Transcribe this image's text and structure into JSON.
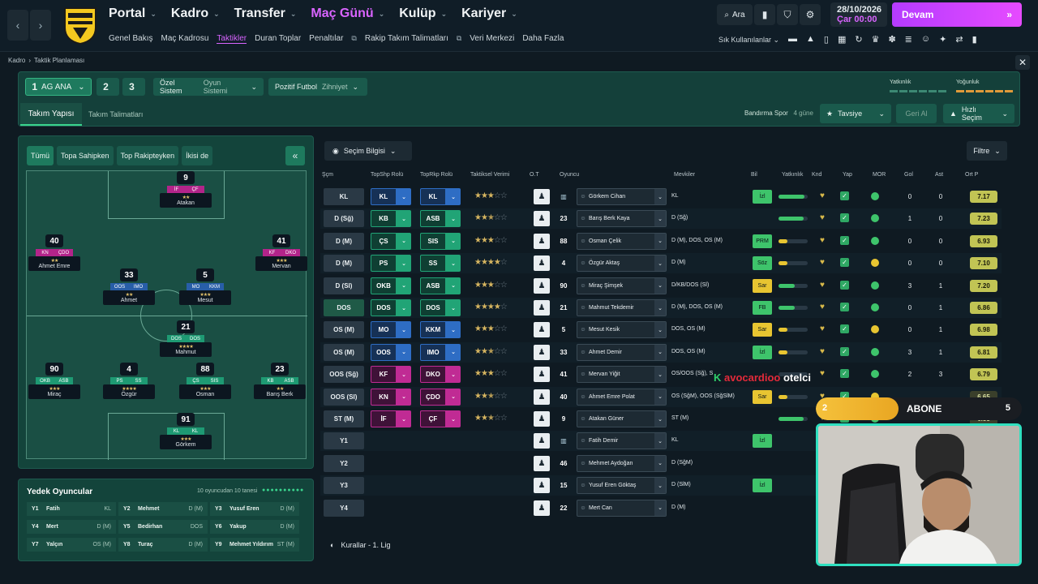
{
  "topnav": {
    "main": [
      {
        "label": "Portal",
        "active": false
      },
      {
        "label": "Kadro",
        "active": false
      },
      {
        "label": "Transfer",
        "active": false
      },
      {
        "label": "Maç Günü",
        "active": true
      },
      {
        "label": "Kulüp",
        "active": false
      },
      {
        "label": "Kariyer",
        "active": false
      }
    ],
    "sub": [
      "Genel Bakış",
      "Maç Kadrosu",
      "Taktikler",
      "Duran Toplar",
      "Penaltılar",
      "Rakip Takım Talimatları",
      "Veri Merkezi",
      "Daha Fazla"
    ],
    "search_label": "Ara",
    "date": "28/10/2026",
    "day": "Çar",
    "time": "00:00",
    "continue_label": "Devam",
    "favorites_label": "Sık Kullanılanlar"
  },
  "breadcrumb": [
    "Kadro",
    "Taktik Planlaması"
  ],
  "tactic": {
    "slots": [
      "1",
      "2",
      "3"
    ],
    "slot1_name": "AG ANA",
    "system_label": "Özel Sistem",
    "system_value": "Oyun Sistemi",
    "mentality_label": "Pozitif Futbol",
    "mentality_value": "Zihniyet",
    "familiarity_label": "Yatkınlık",
    "intensity_label": "Yoğunluk",
    "tabs": [
      "Takım Yapısı",
      "Takım Talimatları"
    ],
    "opponent": "Bandırma Spor",
    "opponent_days": "4 güne",
    "advice_label": "Tavsiye",
    "undo_label": "Geri Al",
    "quick_select_label": "Hızlı Seçim"
  },
  "pitch": {
    "filters": [
      "Tümü",
      "Topa Sahipken",
      "Top Rakipteyken",
      "İkisi de"
    ],
    "players": [
      {
        "num": "9",
        "r1": "İF",
        "r2": "ÇF",
        "color": "pink",
        "name": "Atakan",
        "stars": "★★"
      },
      {
        "num": "40",
        "r1": "KN",
        "r2": "ÇDO",
        "color": "pink",
        "name": "Ahmet Emre",
        "stars": "★★"
      },
      {
        "num": "41",
        "r1": "KF",
        "r2": "DKO",
        "color": "pink",
        "name": "Mervan",
        "stars": "★★★"
      },
      {
        "num": "33",
        "r1": "OOS",
        "r2": "IMO",
        "color": "blue",
        "name": "Ahmet",
        "stars": "★★"
      },
      {
        "num": "5",
        "r1": "MO",
        "r2": "KKM",
        "color": "blue",
        "name": "Mesut",
        "stars": "★★★"
      },
      {
        "num": "21",
        "r1": "DOS",
        "r2": "DOS",
        "color": "green",
        "name": "Mahmut",
        "stars": "★★★★"
      },
      {
        "num": "90",
        "r1": "OKB",
        "r2": "ASB",
        "color": "green",
        "name": "Miraç",
        "stars": "★★★"
      },
      {
        "num": "4",
        "r1": "PS",
        "r2": "SS",
        "color": "green",
        "name": "Özgür",
        "stars": "★★★★"
      },
      {
        "num": "88",
        "r1": "ÇS",
        "r2": "SIS",
        "color": "green",
        "name": "Osman",
        "stars": "★★★"
      },
      {
        "num": "23",
        "r1": "KB",
        "r2": "ASB",
        "color": "green",
        "name": "Barış Berk",
        "stars": "★★"
      },
      {
        "num": "91",
        "r1": "KL",
        "r2": "KL",
        "color": "green",
        "name": "Görkem",
        "stars": "★★★"
      }
    ]
  },
  "subs": {
    "title": "Yedek Oyuncular",
    "count": "10 oyuncudan 10 tanesi",
    "items": [
      {
        "slot": "Y1",
        "name": "Fatih",
        "pos": "KL"
      },
      {
        "slot": "Y2",
        "name": "Mehmet",
        "pos": "D (M)"
      },
      {
        "slot": "Y3",
        "name": "Yusuf Eren",
        "pos": "D (M)"
      },
      {
        "slot": "Y4",
        "name": "Mert",
        "pos": "D (M)"
      },
      {
        "slot": "Y5",
        "name": "Bedirhan",
        "pos": "DOS"
      },
      {
        "slot": "Y6",
        "name": "Yakup",
        "pos": "D (M)"
      },
      {
        "slot": "Y7",
        "name": "Yalçın",
        "pos": "OS (M)"
      },
      {
        "slot": "Y8",
        "name": "Turaç",
        "pos": "D (M)"
      },
      {
        "slot": "Y9",
        "name": "Mehmet Yıldırım",
        "pos": "ST (M)"
      }
    ]
  },
  "table": {
    "selection_info_label": "Seçim Bilgisi",
    "filter_label": "Filtre",
    "headers": [
      "Şçm",
      "TopShp Rolü",
      "TopRkp Rolü",
      "Taktiksel Verimi",
      "O.T",
      "Oyuncu",
      "Mevkiler",
      "Bil",
      "Yatkınlık",
      "Knd",
      "Yap",
      "MOR",
      "Gol",
      "Ast",
      "Ort P"
    ],
    "rows": [
      {
        "pos": "KL",
        "r1": "KL",
        "r1c": "blue",
        "r2": "KL",
        "r2c": "blue",
        "stars": 3,
        "half": false,
        "shirt": "kit",
        "name": "Görkem Cihan",
        "positions": "KL",
        "bil": "İzl",
        "bilc": "green",
        "fit": 0.9,
        "goals": "0",
        "assists": "0",
        "rating": "7.17",
        "mor": "g"
      },
      {
        "pos": "D (Sğ)",
        "r1": "KB",
        "r1c": "green",
        "r2": "ASB",
        "r2c": "green",
        "stars": 2,
        "half": true,
        "shirt": "23",
        "name": "Barış Berk Kaya",
        "positions": "D (Sğ)",
        "bil": "",
        "bilc": "",
        "fit": 0.85,
        "goals": "1",
        "assists": "0",
        "rating": "7.23",
        "mor": "g"
      },
      {
        "pos": "D (M)",
        "r1": "ÇS",
        "r1c": "green",
        "r2": "SIS",
        "r2c": "green",
        "stars": 3,
        "half": false,
        "shirt": "88",
        "name": "Osman Çelik",
        "positions": "D (M), DOS, OS (M)",
        "bil": "PRM",
        "bilc": "green",
        "fit": 0.3,
        "goals": "0",
        "assists": "0",
        "rating": "6.93",
        "mor": "g"
      },
      {
        "pos": "D (M)",
        "r1": "PS",
        "r1c": "green",
        "r2": "SS",
        "r2c": "green",
        "stars": 4,
        "half": false,
        "shirt": "4",
        "name": "Özgür Aktaş",
        "positions": "D (M)",
        "bil": "Söz",
        "bilc": "green",
        "fit": 0.3,
        "goals": "0",
        "assists": "0",
        "rating": "7.10",
        "mor": "y"
      },
      {
        "pos": "D (Sl)",
        "r1": "OKB",
        "r1c": "green",
        "r2": "ASB",
        "r2c": "green",
        "stars": 3,
        "half": false,
        "shirt": "90",
        "name": "Miraç Şimşek",
        "positions": "D/KB/DOS (Sl)",
        "bil": "Sar",
        "bilc": "yellow",
        "fit": 0.55,
        "goals": "3",
        "assists": "1",
        "rating": "7.20",
        "mor": "g"
      },
      {
        "pos": "DOS",
        "r1": "DOS",
        "r1c": "green",
        "r2": "DOS",
        "r2c": "green",
        "stars": 4,
        "half": false,
        "shirt": "21",
        "name": "Mahmut Tekdemir",
        "positions": "D (M), DOS, OS (M)",
        "bil": "FB",
        "bilc": "green",
        "fit": 0.55,
        "goals": "0",
        "assists": "1",
        "rating": "6.86",
        "mor": "g"
      },
      {
        "pos": "OS (M)",
        "r1": "MO",
        "r1c": "blue",
        "r2": "KKM",
        "r2c": "blue",
        "stars": 3,
        "half": false,
        "shirt": "5",
        "name": "Mesut Kesik",
        "positions": "DOS, OS (M)",
        "bil": "Sar",
        "bilc": "yellow",
        "fit": 0.3,
        "goals": "0",
        "assists": "1",
        "rating": "6.98",
        "mor": "y"
      },
      {
        "pos": "OS (M)",
        "r1": "OOS",
        "r1c": "blue",
        "r2": "IMO",
        "r2c": "blue",
        "stars": 2,
        "half": true,
        "shirt": "33",
        "name": "Ahmet Demir",
        "positions": "DOS, OS (M)",
        "bil": "İzl",
        "bilc": "green",
        "fit": 0.3,
        "goals": "3",
        "assists": "1",
        "rating": "6.81",
        "mor": "g"
      },
      {
        "pos": "OOS (Sğ)",
        "r1": "KF",
        "r1c": "pink",
        "r2": "DKO",
        "r2c": "pink",
        "stars": 3,
        "half": false,
        "shirt": "41",
        "name": "Mervan Yiğit",
        "positions": "OS/OOS (Sğ), S",
        "bil": "",
        "bilc": "",
        "fit": 0.0,
        "goals": "2",
        "assists": "3",
        "rating": "6.79",
        "mor": "g"
      },
      {
        "pos": "OOS (Sl)",
        "r1": "KN",
        "r1c": "pink",
        "r2": "ÇDO",
        "r2c": "pink",
        "stars": 2,
        "half": true,
        "shirt": "40",
        "name": "Ahmet Emre Polat",
        "positions": "OS (SğM), OOS (SğSlM)",
        "bil": "Sar",
        "bilc": "yellow",
        "fit": 0.3,
        "goals": "",
        "assists": "",
        "rating": "6.65",
        "mor": "y"
      },
      {
        "pos": "ST (M)",
        "r1": "İF",
        "r1c": "pink",
        "r2": "ÇF",
        "r2c": "pink",
        "stars": 2,
        "half": true,
        "shirt": "9",
        "name": "Atakan Güner",
        "positions": "ST (M)",
        "bil": "",
        "bilc": "",
        "fit": 0.85,
        "goals": "",
        "assists": "",
        "rating": "6.55",
        "mor": "g"
      },
      {
        "pos": "Y1",
        "r1": "",
        "r1c": "",
        "r2": "",
        "r2c": "",
        "stars": 0,
        "half": false,
        "shirt": "kit",
        "name": "Fatih Demir",
        "positions": "KL",
        "bil": "İzl",
        "bilc": "green",
        "fit": 0,
        "goals": "",
        "assists": "",
        "rating": "",
        "mor": ""
      },
      {
        "pos": "Y2",
        "r1": "",
        "r1c": "",
        "r2": "",
        "r2c": "",
        "stars": 0,
        "half": false,
        "shirt": "46",
        "name": "Mehmet Aydoğan",
        "positions": "D (SğM)",
        "bil": "",
        "bilc": "",
        "fit": 0,
        "goals": "",
        "assists": "",
        "rating": "",
        "mor": ""
      },
      {
        "pos": "Y3",
        "r1": "",
        "r1c": "",
        "r2": "",
        "r2c": "",
        "stars": 0,
        "half": false,
        "shirt": "15",
        "name": "Yusuf Eren Göktaş",
        "positions": "D (SlM)",
        "bil": "İzl",
        "bilc": "green",
        "fit": 0,
        "goals": "",
        "assists": "",
        "rating": "",
        "mor": ""
      },
      {
        "pos": "Y4",
        "r1": "",
        "r1c": "",
        "r2": "",
        "r2c": "",
        "stars": 0,
        "half": false,
        "shirt": "22",
        "name": "Mert Can",
        "positions": "D (M)",
        "bil": "",
        "bilc": "",
        "fit": 0,
        "goals": "",
        "assists": "",
        "rating": "",
        "mor": ""
      }
    ],
    "league": "Kurallar - 1. Lig"
  },
  "overlay": {
    "sponsor_a": "avocardioo",
    "sponsor_b": "otelci",
    "subscribe_current": "2",
    "subscribe_label": "ABONE",
    "subscribe_goal": "5",
    "subscribe_progress": 0.4
  }
}
